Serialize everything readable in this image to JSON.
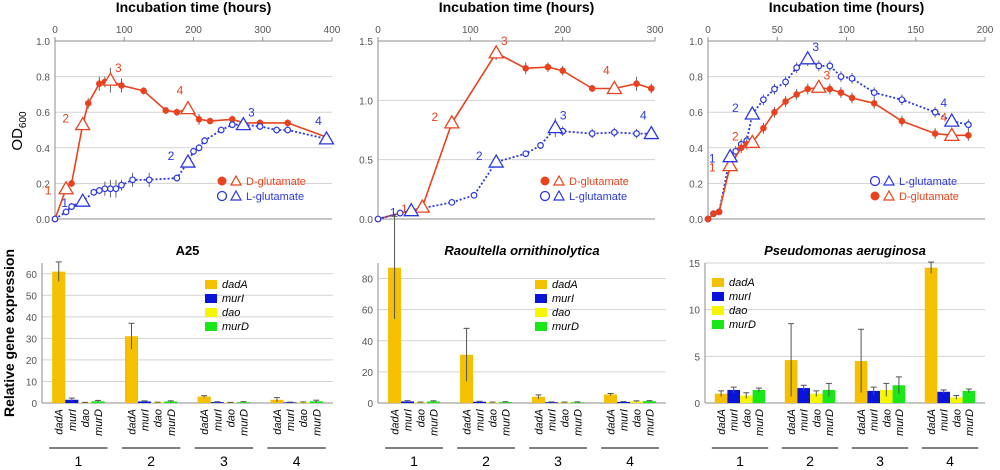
{
  "ylabel_top_main": "OD",
  "ylabel_top_sub": "600",
  "ylabel_bottom": "Relative gene expression",
  "colors": {
    "D": "#e8431e",
    "L": "#2b38e0",
    "dadA": "#f5c000",
    "murI": "#0a14d8",
    "dao": "#f6f600",
    "murD": "#18e818",
    "grid": "#d3d3d3",
    "axis": "#8c8c8c"
  },
  "genes": [
    "dadA",
    "murI",
    "dao",
    "murD"
  ],
  "gene_labels": {
    "dadA": "dadA",
    "murI": "murI",
    "dao": "dao",
    "murD": "murD"
  },
  "groups": [
    "1",
    "2",
    "3",
    "4"
  ],
  "chart_data": [
    {
      "type": "line",
      "xlabel": "Incubation time (hours)",
      "ylabel": "OD600",
      "xlim": [
        0,
        400
      ],
      "xticks": [
        0,
        100,
        200,
        300,
        400
      ],
      "ylim": [
        0,
        1.0
      ],
      "yticks": [
        0,
        0.2,
        0.4,
        0.6,
        0.8,
        1.0
      ],
      "legend_position": "bottom-right",
      "legend": [
        {
          "label": "D-glutamate",
          "color_key": "D"
        },
        {
          "label": "L-glutamate",
          "color_key": "L"
        }
      ],
      "series": [
        {
          "name": "D-glutamate",
          "color_key": "D",
          "style": "solid",
          "x": [
            0,
            16,
            24,
            40,
            48,
            64,
            72,
            80,
            96,
            128,
            160,
            176,
            192,
            208,
            224,
            256,
            272,
            296,
            336,
            392
          ],
          "y": [
            0.0,
            0.17,
            0.2,
            0.53,
            0.65,
            0.76,
            0.77,
            0.78,
            0.75,
            0.72,
            0.61,
            0.6,
            0.62,
            0.56,
            0.55,
            0.56,
            0.54,
            0.54,
            0.54,
            0.46
          ],
          "err": [
            0,
            0,
            0.02,
            0.02,
            0.03,
            0.04,
            0.03,
            0.07,
            0.04,
            0.02,
            0.02,
            0.02,
            0.03,
            0.03,
            0.01,
            0.02,
            0.02,
            0.02,
            0.02,
            0.02
          ]
        },
        {
          "name": "L-glutamate",
          "color_key": "L",
          "style": "dotted",
          "x": [
            0,
            16,
            24,
            40,
            56,
            64,
            72,
            80,
            88,
            96,
            112,
            136,
            176,
            192,
            200,
            208,
            216,
            240,
            256,
            272,
            296,
            320,
            336,
            392
          ],
          "y": [
            0.0,
            0.04,
            0.07,
            0.1,
            0.15,
            0.16,
            0.17,
            0.17,
            0.17,
            0.19,
            0.22,
            0.22,
            0.23,
            0.32,
            0.38,
            0.4,
            0.44,
            0.5,
            0.53,
            0.53,
            0.52,
            0.5,
            0.5,
            0.45
          ],
          "err": [
            0,
            0.02,
            0.02,
            0.03,
            0.02,
            0.02,
            0.04,
            0.05,
            0.05,
            0.03,
            0.04,
            0.04,
            0.02,
            0.02,
            0.02,
            0.02,
            0.02,
            0.02,
            0.02,
            0.02,
            0.02,
            0.02,
            0.02,
            0.02
          ]
        }
      ],
      "markers": [
        {
          "label": "1",
          "series": 0,
          "x": 16,
          "y": 0.17
        },
        {
          "label": "2",
          "series": 0,
          "x": 40,
          "y": 0.53
        },
        {
          "label": "3",
          "series": 0,
          "x": 80,
          "y": 0.78
        },
        {
          "label": "4",
          "series": 0,
          "x": 192,
          "y": 0.62
        },
        {
          "label": "1",
          "series": 1,
          "x": 40,
          "y": 0.1
        },
        {
          "label": "2",
          "series": 1,
          "x": 192,
          "y": 0.32
        },
        {
          "label": "3",
          "series": 1,
          "x": 272,
          "y": 0.53
        },
        {
          "label": "4",
          "series": 1,
          "x": 392,
          "y": 0.45
        }
      ]
    },
    {
      "type": "line",
      "xlabel": "Incubation time (hours)",
      "ylabel": "OD600",
      "xlim": [
        0,
        300
      ],
      "xticks": [
        0,
        100,
        200,
        300
      ],
      "ylim": [
        0,
        1.5
      ],
      "yticks": [
        0,
        0.5,
        1.0,
        1.5
      ],
      "legend_position": "bottom-right",
      "legend": [
        {
          "label": "D-glutamate",
          "color_key": "D"
        },
        {
          "label": "L-glutamate",
          "color_key": "L"
        }
      ],
      "series": [
        {
          "name": "D-glutamate",
          "color_key": "D",
          "style": "solid",
          "x": [
            0,
            24,
            36,
            48,
            80,
            128,
            160,
            184,
            200,
            232,
            256,
            280,
            296
          ],
          "y": [
            0.0,
            0.05,
            0.07,
            0.1,
            0.81,
            1.4,
            1.27,
            1.28,
            1.25,
            1.1,
            1.1,
            1.14,
            1.1
          ],
          "err": [
            0,
            0.02,
            0.02,
            0.02,
            0.03,
            0.06,
            0.05,
            0.04,
            0.04,
            0.03,
            0.04,
            0.06,
            0.04
          ]
        },
        {
          "name": "L-glutamate",
          "color_key": "L",
          "style": "dotted",
          "x": [
            0,
            24,
            36,
            48,
            80,
            104,
            128,
            160,
            176,
            192,
            200,
            232,
            256,
            280,
            296
          ],
          "y": [
            0.0,
            0.05,
            0.07,
            0.09,
            0.14,
            0.2,
            0.48,
            0.55,
            0.62,
            0.77,
            0.74,
            0.72,
            0.73,
            0.72,
            0.72
          ],
          "err": [
            0,
            0.01,
            0.01,
            0.01,
            0.01,
            0.01,
            0.02,
            0.02,
            0.03,
            0.08,
            0.04,
            0.04,
            0.04,
            0.04,
            0.05
          ]
        }
      ],
      "markers": [
        {
          "label": "1",
          "series": 0,
          "x": 48,
          "y": 0.1
        },
        {
          "label": "2",
          "series": 0,
          "x": 80,
          "y": 0.81
        },
        {
          "label": "3",
          "series": 0,
          "x": 128,
          "y": 1.4
        },
        {
          "label": "4",
          "series": 0,
          "x": 256,
          "y": 1.1
        },
        {
          "label": "1",
          "series": 1,
          "x": 36,
          "y": 0.07
        },
        {
          "label": "2",
          "series": 1,
          "x": 128,
          "y": 0.48
        },
        {
          "label": "3",
          "series": 1,
          "x": 192,
          "y": 0.77
        },
        {
          "label": "4",
          "series": 1,
          "x": 296,
          "y": 0.72
        }
      ]
    },
    {
      "type": "line",
      "xlabel": "Incubation time (hours)",
      "ylabel": "OD600",
      "xlim": [
        0,
        200
      ],
      "xticks": [
        0,
        50,
        100,
        150,
        200
      ],
      "ylim": [
        0,
        1.0
      ],
      "yticks": [
        0,
        0.2,
        0.4,
        0.6,
        0.8,
        1.0
      ],
      "legend_position": "bottom-right",
      "legend": [
        {
          "label": "L-glutamate",
          "color_key": "L"
        },
        {
          "label": "D-glutamate",
          "color_key": "D"
        }
      ],
      "series": [
        {
          "name": "L-glutamate",
          "color_key": "L",
          "style": "dotted",
          "x": [
            0,
            4,
            8,
            16,
            20,
            24,
            28,
            32,
            40,
            48,
            56,
            64,
            72,
            80,
            88,
            96,
            104,
            120,
            140,
            164,
            176,
            188
          ],
          "y": [
            0.0,
            0.03,
            0.04,
            0.35,
            0.38,
            0.42,
            0.44,
            0.59,
            0.67,
            0.73,
            0.77,
            0.85,
            0.9,
            0.86,
            0.86,
            0.8,
            0.79,
            0.71,
            0.67,
            0.6,
            0.55,
            0.53
          ],
          "err": [
            0,
            0.01,
            0.01,
            0.03,
            0.03,
            0.03,
            0.03,
            0.03,
            0.03,
            0.03,
            0.03,
            0.03,
            0.04,
            0.03,
            0.03,
            0.03,
            0.03,
            0.03,
            0.03,
            0.03,
            0.03,
            0.03
          ]
        },
        {
          "name": "D-glutamate",
          "color_key": "D",
          "style": "solid",
          "x": [
            0,
            4,
            8,
            16,
            24,
            28,
            32,
            40,
            48,
            56,
            64,
            72,
            80,
            88,
            96,
            104,
            120,
            140,
            164,
            176,
            188
          ],
          "y": [
            0.0,
            0.03,
            0.04,
            0.3,
            0.4,
            0.42,
            0.43,
            0.51,
            0.6,
            0.66,
            0.7,
            0.73,
            0.74,
            0.73,
            0.71,
            0.68,
            0.65,
            0.55,
            0.48,
            0.47,
            0.47
          ],
          "err": [
            0,
            0.01,
            0.01,
            0.03,
            0.03,
            0.03,
            0.03,
            0.03,
            0.03,
            0.03,
            0.03,
            0.03,
            0.03,
            0.03,
            0.03,
            0.03,
            0.03,
            0.03,
            0.03,
            0.03,
            0.03
          ]
        }
      ],
      "markers": [
        {
          "label": "1",
          "series": 1,
          "x": 16,
          "y": 0.3
        },
        {
          "label": "2",
          "series": 1,
          "x": 32,
          "y": 0.43
        },
        {
          "label": "3",
          "series": 1,
          "x": 80,
          "y": 0.74
        },
        {
          "label": "4",
          "series": 1,
          "x": 176,
          "y": 0.47
        },
        {
          "label": "1",
          "series": 0,
          "x": 16,
          "y": 0.35
        },
        {
          "label": "2",
          "series": 0,
          "x": 32,
          "y": 0.59
        },
        {
          "label": "3",
          "series": 0,
          "x": 72,
          "y": 0.9
        },
        {
          "label": "4",
          "series": 0,
          "x": 176,
          "y": 0.55
        }
      ]
    },
    {
      "type": "bar",
      "title": "A25",
      "ylabel": "Relative gene expression",
      "ylim": [
        0,
        65
      ],
      "yticks": [
        0,
        10,
        20,
        30,
        40,
        50,
        60
      ],
      "categories": [
        "1",
        "2",
        "3",
        "4"
      ],
      "legend_position": "center-right",
      "series": [
        {
          "name": "dadA",
          "values": [
            61,
            31,
            3,
            1.5
          ],
          "err": [
            4.5,
            6,
            0.4,
            1.0
          ]
        },
        {
          "name": "murI",
          "values": [
            1.5,
            0.7,
            0.4,
            0.3
          ],
          "err": [
            0.8,
            0.3,
            0.2,
            0.1
          ]
        },
        {
          "name": "dao",
          "values": [
            0.2,
            0.3,
            0.2,
            0.3
          ],
          "err": [
            0.1,
            0.1,
            0.1,
            0.2
          ]
        },
        {
          "name": "murD",
          "values": [
            0.8,
            0.7,
            0.4,
            0.8
          ],
          "err": [
            0.4,
            0.3,
            0.2,
            0.5
          ]
        }
      ]
    },
    {
      "type": "bar",
      "title": "Raoultella ornithinolytica",
      "ylabel": "Relative gene expression",
      "ylim": [
        0,
        90
      ],
      "yticks": [
        0,
        20,
        40,
        60,
        80
      ],
      "categories": [
        "1",
        "2",
        "3",
        "4"
      ],
      "legend_position": "center-right",
      "series": [
        {
          "name": "dadA",
          "values": [
            87,
            31,
            4,
            5.5
          ],
          "err": [
            33,
            17,
            1.2,
            0.6
          ]
        },
        {
          "name": "murI",
          "values": [
            1.0,
            0.8,
            0.5,
            0.7
          ],
          "err": [
            0.5,
            0.3,
            0.2,
            0.2
          ]
        },
        {
          "name": "dao",
          "values": [
            0.4,
            0.4,
            0.4,
            1.0
          ],
          "err": [
            0.2,
            0.2,
            0.2,
            0.4
          ]
        },
        {
          "name": "murD",
          "values": [
            1.0,
            0.6,
            0.5,
            1.2
          ],
          "err": [
            0.4,
            0.2,
            0.2,
            0.3
          ]
        }
      ]
    },
    {
      "type": "bar",
      "title": "Pseudomonas aeruginosa",
      "ylabel": "Relative gene expression",
      "ylim": [
        0,
        15
      ],
      "yticks": [
        0,
        5,
        10,
        15
      ],
      "categories": [
        "1",
        "2",
        "3",
        "4"
      ],
      "legend_position": "top-left",
      "series": [
        {
          "name": "dadA",
          "values": [
            1.0,
            4.6,
            4.5,
            14.5
          ],
          "err": [
            0.3,
            3.9,
            3.4,
            0.6
          ]
        },
        {
          "name": "murI",
          "values": [
            1.4,
            1.6,
            1.3,
            1.2
          ],
          "err": [
            0.3,
            0.3,
            0.4,
            0.2
          ]
        },
        {
          "name": "dao",
          "values": [
            0.8,
            1.0,
            1.4,
            0.6
          ],
          "err": [
            0.3,
            0.3,
            0.7,
            0.2
          ]
        },
        {
          "name": "murD",
          "values": [
            1.4,
            1.4,
            1.9,
            1.3
          ],
          "err": [
            0.2,
            0.7,
            0.9,
            0.2
          ]
        }
      ]
    }
  ]
}
